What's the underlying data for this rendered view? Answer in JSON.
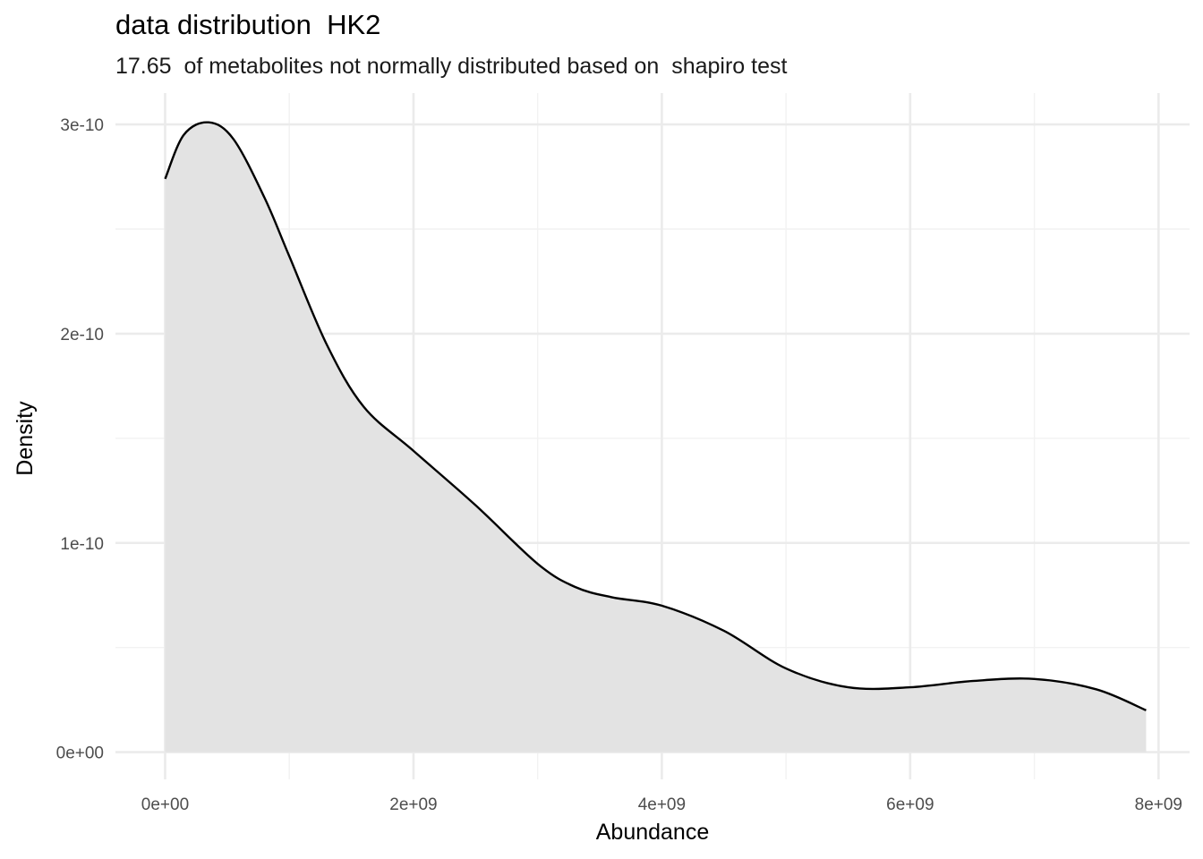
{
  "chart_data": {
    "type": "area",
    "title": "data distribution  HK2",
    "subtitle": "17.65  of metabolites not normally distributed based on  shapiro test",
    "xlabel": "Abundance",
    "ylabel": "Density",
    "xlim": [
      -400000000,
      8250000000
    ],
    "ylim": [
      -1.3e-11,
      3.15e-10
    ],
    "x_ticks": [
      0,
      2000000000,
      4000000000,
      6000000000,
      8000000000
    ],
    "x_tick_labels": [
      "0e+00",
      "2e+09",
      "4e+09",
      "6e+09",
      "8e+09"
    ],
    "x_minor_ticks": [
      1000000000,
      3000000000,
      5000000000,
      7000000000
    ],
    "y_ticks": [
      0,
      1e-10,
      2e-10,
      3e-10
    ],
    "y_tick_labels": [
      "0e+00",
      "1e-10",
      "2e-10",
      "3e-10"
    ],
    "y_minor_ticks": [
      5e-11,
      1.5e-10,
      2.5e-10
    ],
    "grid": true,
    "series": [
      {
        "fill": "#e3e3e3",
        "line": "#000000",
        "x": [
          0,
          150000000,
          350000000,
          550000000,
          800000000,
          1000000000,
          1300000000,
          1600000000,
          2000000000,
          2500000000,
          3000000000,
          3300000000,
          3600000000,
          4000000000,
          4500000000,
          5000000000,
          5500000000,
          6000000000,
          6500000000,
          7000000000,
          7500000000,
          7900000000
        ],
        "y": [
          2.74e-10,
          2.95e-10,
          3.01e-10,
          2.93e-10,
          2.65e-10,
          2.37e-10,
          1.95e-10,
          1.65e-10,
          1.44e-10,
          1.18e-10,
          9e-11,
          7.9e-11,
          7.4e-11,
          7e-11,
          5.8e-11,
          4e-11,
          3.1e-11,
          3.1e-11,
          3.4e-11,
          3.5e-11,
          3e-11,
          2e-11
        ]
      }
    ]
  }
}
